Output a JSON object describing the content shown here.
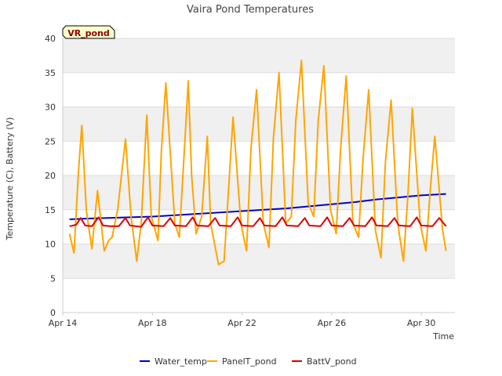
{
  "chart_data": {
    "type": "line",
    "title": "Vaira Pond Temperatures",
    "xlabel": "Time",
    "ylabel": "Temperature (C), Battery (V)",
    "ylim": [
      0,
      40
    ],
    "yticks": [
      0,
      5,
      10,
      15,
      20,
      25,
      30,
      35,
      40
    ],
    "xlim": [
      14,
      31.5
    ],
    "xticks": [
      {
        "x": 14,
        "label": "Apr 14"
      },
      {
        "x": 18,
        "label": "Apr 18"
      },
      {
        "x": 22,
        "label": "Apr 22"
      },
      {
        "x": 26,
        "label": "Apr 26"
      },
      {
        "x": 30,
        "label": "Apr 30"
      }
    ],
    "station_label": "VR_pond",
    "grid": "horizontal bands",
    "legend_position": "bottom",
    "series": [
      {
        "name": "Water_temp",
        "color": "#0000cc",
        "x": [
          14.3,
          15,
          16,
          17,
          18,
          19,
          20,
          21,
          22,
          23,
          24,
          25,
          26,
          27,
          28,
          29,
          30,
          31.1
        ],
        "y": [
          13.6,
          13.7,
          13.8,
          13.9,
          14.0,
          14.2,
          14.4,
          14.6,
          14.8,
          15.0,
          15.2,
          15.5,
          15.8,
          16.1,
          16.5,
          16.8,
          17.1,
          17.3
        ]
      },
      {
        "name": "PanelT_pond",
        "color": "#ffa500",
        "x": [
          14.3,
          14.5,
          14.7,
          14.85,
          15.05,
          15.3,
          15.55,
          15.85,
          16.05,
          16.2,
          16.45,
          16.8,
          17.05,
          17.3,
          17.5,
          17.75,
          17.95,
          18.25,
          18.4,
          18.6,
          19.0,
          19.2,
          19.45,
          19.6,
          19.75,
          19.95,
          20.2,
          20.45,
          20.6,
          20.95,
          21.2,
          21.4,
          21.6,
          21.95,
          22.2,
          22.4,
          22.65,
          22.95,
          23.2,
          23.4,
          23.65,
          23.95,
          24.2,
          24.4,
          24.65,
          24.95,
          25.2,
          25.4,
          25.65,
          25.95,
          26.2,
          26.4,
          26.65,
          26.95,
          27.2,
          27.4,
          27.65,
          27.95,
          28.2,
          28.4,
          28.65,
          28.95,
          29.2,
          29.4,
          29.6,
          29.95,
          30.2,
          30.4,
          30.6,
          30.95,
          31.1
        ],
        "y": [
          11.5,
          8.7,
          20.5,
          27.3,
          15.0,
          9.3,
          17.8,
          9.0,
          10.5,
          11.0,
          15.0,
          25.3,
          14.0,
          7.5,
          13.0,
          28.8,
          14.0,
          10.5,
          23.5,
          33.5,
          13.0,
          11.0,
          25.0,
          33.8,
          20.0,
          11.5,
          14.0,
          25.7,
          13.0,
          7.0,
          7.5,
          18.0,
          28.5,
          13.0,
          9.0,
          24.0,
          32.5,
          13.0,
          9.5,
          25.5,
          35.0,
          13.0,
          14.0,
          28.0,
          36.8,
          16.0,
          14.0,
          28.0,
          36.0,
          15.0,
          11.5,
          24.0,
          34.5,
          13.0,
          11.0,
          22.5,
          32.5,
          12.0,
          8.0,
          22.0,
          31.0,
          13.0,
          7.5,
          17.0,
          29.8,
          13.0,
          9.0,
          18.0,
          25.7,
          12.0,
          9.0
        ]
      },
      {
        "name": "BattV_pond",
        "color": "#dd0000",
        "x": [
          14.3,
          14.6,
          14.8,
          15.0,
          15.3,
          15.6,
          15.8,
          16.1,
          16.5,
          16.8,
          17.0,
          17.5,
          17.8,
          18.0,
          18.5,
          18.8,
          19.0,
          19.5,
          19.8,
          20.0,
          20.5,
          20.8,
          21.0,
          21.5,
          21.8,
          22.0,
          22.5,
          22.8,
          23.0,
          23.5,
          23.8,
          24.0,
          24.5,
          24.8,
          25.0,
          25.5,
          25.8,
          26.0,
          26.5,
          26.8,
          27.0,
          27.5,
          27.8,
          28.0,
          28.5,
          28.8,
          29.0,
          29.5,
          29.8,
          30.0,
          30.5,
          30.8,
          31.1
        ],
        "y": [
          12.6,
          12.8,
          13.8,
          12.7,
          12.6,
          13.9,
          12.7,
          12.6,
          12.6,
          13.8,
          12.7,
          12.5,
          13.9,
          12.7,
          12.6,
          13.8,
          12.7,
          12.6,
          13.9,
          12.7,
          12.6,
          13.8,
          12.7,
          12.6,
          13.9,
          12.7,
          12.6,
          13.8,
          12.7,
          12.6,
          13.9,
          12.7,
          12.6,
          13.8,
          12.7,
          12.6,
          13.9,
          12.7,
          12.6,
          13.8,
          12.7,
          12.6,
          13.9,
          12.7,
          12.6,
          13.8,
          12.7,
          12.6,
          13.9,
          12.7,
          12.6,
          13.8,
          12.6
        ]
      }
    ]
  }
}
